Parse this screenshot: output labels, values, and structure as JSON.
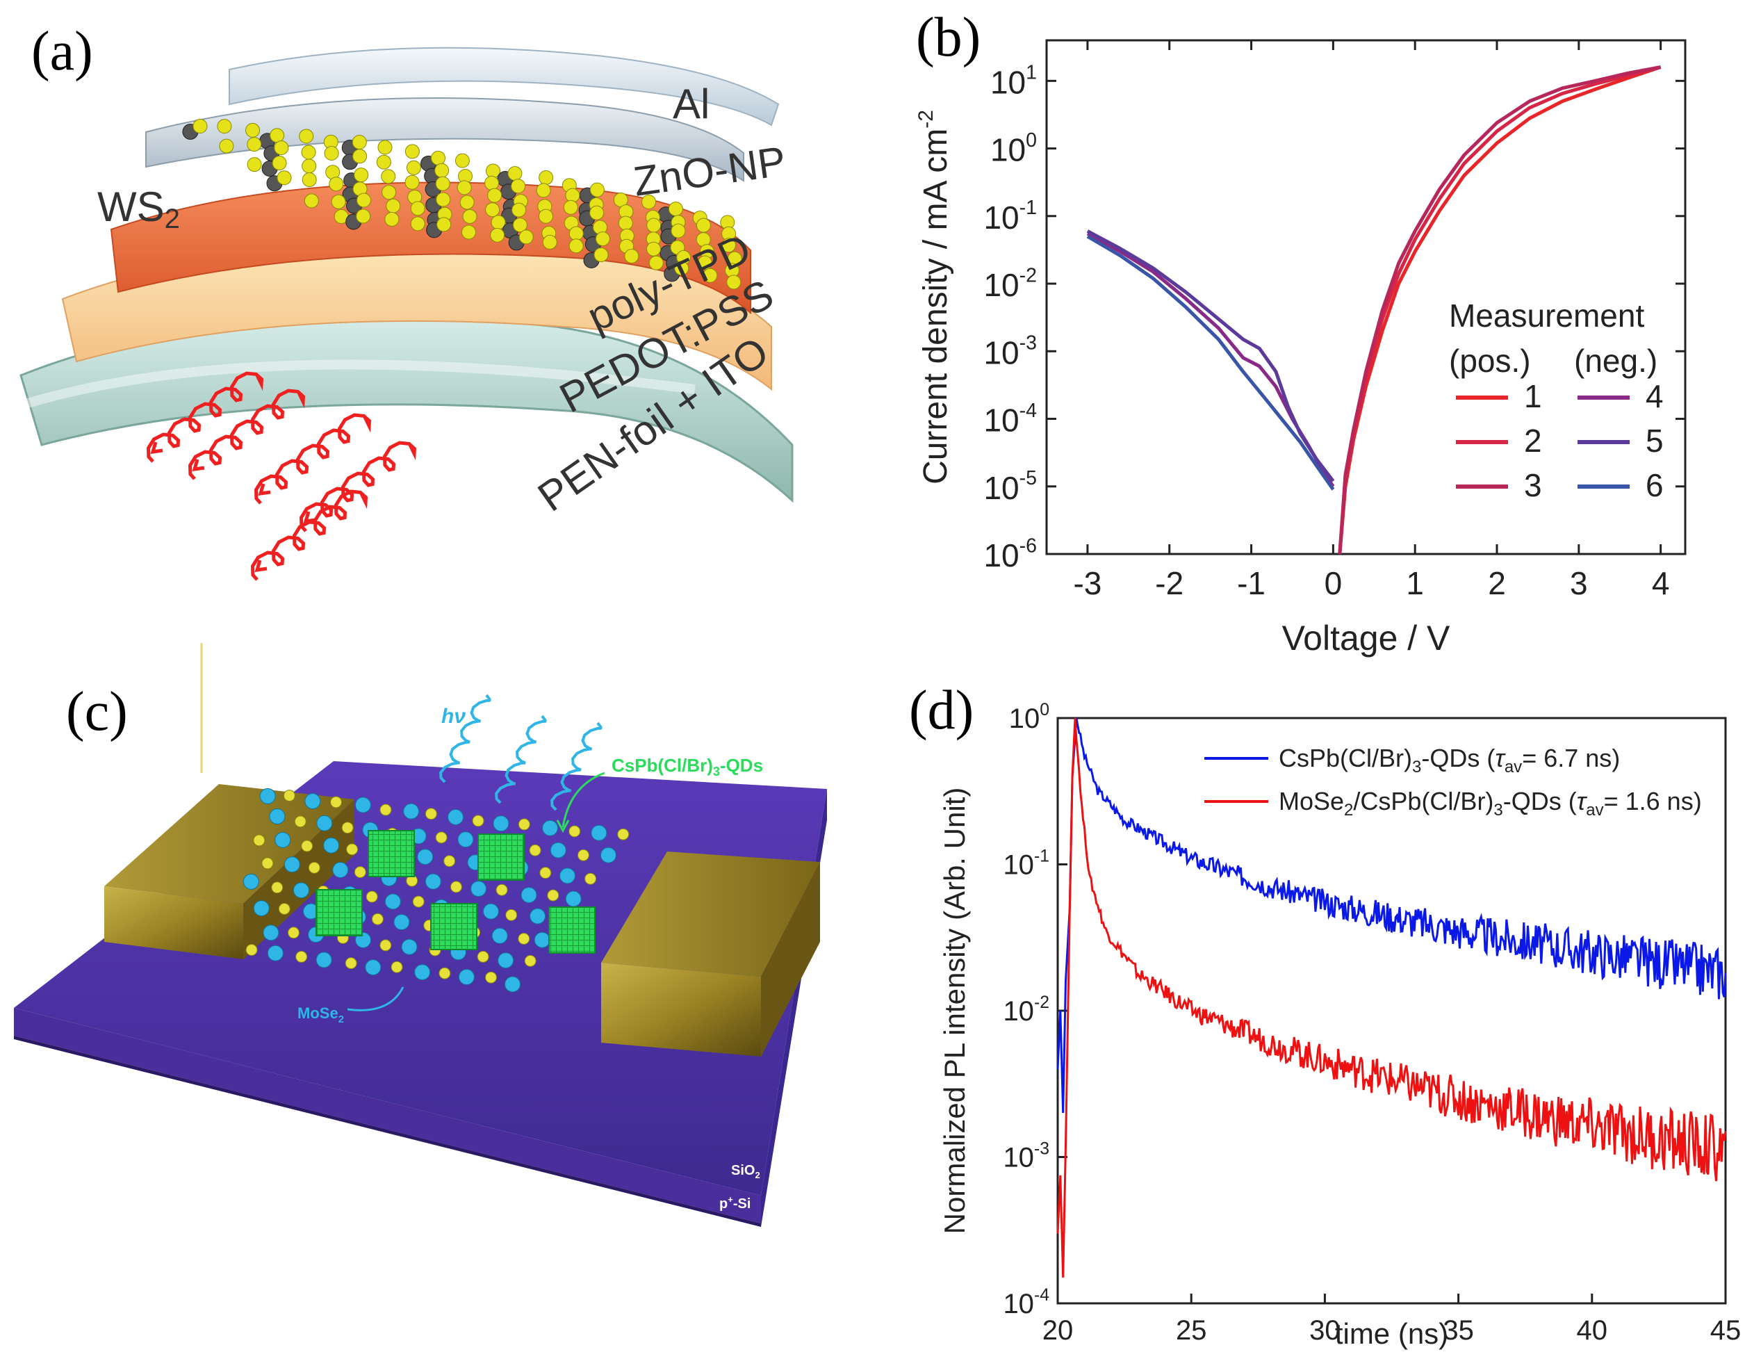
{
  "panels": {
    "a": {
      "label": "(a)",
      "layers": [
        "Al",
        "ZnO-NP",
        "poly-TPD",
        "PEDOT:PSS",
        "PEN-foil + ITO"
      ],
      "material_label": "WS",
      "material_sub": "2"
    },
    "b": {
      "label": "(b)"
    },
    "c": {
      "label": "(c)",
      "hv": "hν",
      "qd_label": "CsPb(Cl/Br)",
      "qd_sub": "3",
      "qd_suffix": "-QDs",
      "mose2_label": "MoSe",
      "mose2_sub": "2",
      "sio2_label": "SiO",
      "sio2_sub": "2",
      "si_label": "p",
      "si_sup": "+",
      "si_suffix": "-Si"
    },
    "d": {
      "label": "(d)"
    }
  },
  "colors": {
    "red": "#e8262a",
    "red2": "#d62545",
    "red3": "#b8275a",
    "purple4": "#8a2a88",
    "purple5": "#5b3a9c",
    "blue6": "#3a55a8",
    "blue_d": "#0a18e8",
    "red_d": "#ee1111"
  },
  "chart_data": [
    {
      "type": "line",
      "title": "",
      "xlabel": "Voltage / V",
      "ylabel": "Current density / mA cm",
      "ylabel_sup": "-2",
      "yscale": "log",
      "xlim": [
        -3.5,
        4.3
      ],
      "ylim_exp": [
        -6,
        1.6
      ],
      "x_ticks": [
        "-3",
        "-2",
        "-1",
        "0",
        "1",
        "2",
        "3",
        "4"
      ],
      "y_tick_exponents": [
        "1",
        "0",
        "-1",
        "-2",
        "-3",
        "-4",
        "-5",
        "-6"
      ],
      "legend": {
        "title": "Measurement",
        "col_pos": "(pos.)",
        "col_neg": "(neg.)",
        "placement": "right"
      },
      "series": [
        {
          "name": "1",
          "group": "pos",
          "color": "#e8262a",
          "x": [
            0.08,
            0.15,
            0.25,
            0.4,
            0.6,
            0.8,
            1.0,
            1.3,
            1.6,
            2.0,
            2.4,
            2.8,
            3.2,
            3.6,
            4.0
          ],
          "y": [
            1e-06,
            1e-05,
            5e-05,
            0.0003,
            0.002,
            0.01,
            0.03,
            0.12,
            0.4,
            1.2,
            2.8,
            5.0,
            7.5,
            11,
            16
          ]
        },
        {
          "name": "2",
          "group": "pos",
          "color": "#d62545",
          "x": [
            0.08,
            0.15,
            0.25,
            0.4,
            0.6,
            0.8,
            1.0,
            1.3,
            1.6,
            2.0,
            2.4,
            2.8,
            3.2,
            3.6,
            4.0
          ],
          "y": [
            1e-06,
            1.2e-05,
            6e-05,
            0.0004,
            0.003,
            0.014,
            0.045,
            0.18,
            0.6,
            1.8,
            4.0,
            6.5,
            9.0,
            12,
            16
          ]
        },
        {
          "name": "3",
          "group": "pos",
          "color": "#b8275a",
          "x": [
            0.08,
            0.15,
            0.25,
            0.4,
            0.6,
            0.8,
            1.0,
            1.3,
            1.6,
            2.0,
            2.4,
            2.8,
            3.2,
            3.6,
            4.0
          ],
          "y": [
            1e-06,
            1.5e-05,
            7e-05,
            0.0005,
            0.004,
            0.02,
            0.06,
            0.25,
            0.8,
            2.4,
            5.0,
            7.8,
            10,
            13,
            16
          ]
        },
        {
          "name": "4",
          "group": "neg",
          "color": "#8a2a88",
          "x": [
            -3.0,
            -2.6,
            -2.2,
            -1.8,
            -1.4,
            -1.1,
            -0.9,
            -0.7,
            -0.5,
            -0.3,
            -0.1,
            0.0
          ],
          "y": [
            0.055,
            0.03,
            0.015,
            0.006,
            0.0022,
            0.0008,
            0.0006,
            0.0003,
            0.0001,
            4e-05,
            1.5e-05,
            1e-05
          ]
        },
        {
          "name": "5",
          "group": "neg",
          "color": "#5b3a9c",
          "x": [
            -3.0,
            -2.6,
            -2.2,
            -1.8,
            -1.4,
            -1.1,
            -0.9,
            -0.7,
            -0.55,
            -0.4,
            -0.2,
            0.0
          ],
          "y": [
            0.06,
            0.033,
            0.017,
            0.0075,
            0.003,
            0.0015,
            0.0011,
            0.0005,
            0.00015,
            6e-05,
            2.5e-05,
            1.2e-05
          ]
        },
        {
          "name": "6",
          "group": "neg",
          "color": "#3a55a8",
          "x": [
            -3.0,
            -2.6,
            -2.2,
            -1.8,
            -1.4,
            -1.1,
            -0.8,
            -0.6,
            -0.4,
            -0.2,
            0.0
          ],
          "y": [
            0.05,
            0.026,
            0.012,
            0.0045,
            0.0015,
            0.0005,
            0.00018,
            9e-05,
            4.5e-05,
            2e-05,
            9e-06
          ]
        }
      ]
    },
    {
      "type": "line",
      "title": "",
      "xlabel": "time (ns)",
      "ylabel": "Normalized PL intensity (Arb. Unit)",
      "yscale": "log",
      "xlim": [
        20,
        45
      ],
      "ylim_exp": [
        -4,
        0
      ],
      "x_ticks": [
        "20",
        "25",
        "30",
        "35",
        "40",
        "45"
      ],
      "y_tick_exponents": [
        "0",
        "-1",
        "-2",
        "-3",
        "-4"
      ],
      "legend": {
        "placement": "top-right"
      },
      "series": [
        {
          "name": "CsPb(Cl/Br)",
          "name_sub": "3",
          "name_suffix": "-QDs (",
          "tau_sym": "τ",
          "tau_sub": "av",
          "tau_value": "= 6.7 ns)",
          "color": "#0a18e8",
          "peak_x": 20.7,
          "floor_y": 0.002,
          "tail": [
            [
              20.7,
              1.0
            ],
            [
              21.0,
              0.55
            ],
            [
              21.5,
              0.32
            ],
            [
              22.5,
              0.2
            ],
            [
              25,
              0.11
            ],
            [
              28,
              0.07
            ],
            [
              30,
              0.055
            ],
            [
              35,
              0.035
            ],
            [
              40,
              0.025
            ],
            [
              45,
              0.018
            ]
          ]
        },
        {
          "name": "MoSe",
          "name_sub": "2",
          "name_suffix": "/CsPb(Cl/Br)",
          "name_sub2": "3",
          "name_suffix2": "-QDs (",
          "tau_sym": "τ",
          "tau_sub": "av",
          "tau_value": "= 1.6 ns)",
          "color": "#ee1111",
          "peak_x": 20.65,
          "floor_y": 0.00015,
          "tail": [
            [
              20.65,
              1.0
            ],
            [
              20.9,
              0.25
            ],
            [
              21.2,
              0.08
            ],
            [
              21.8,
              0.035
            ],
            [
              23,
              0.018
            ],
            [
              25,
              0.01
            ],
            [
              28,
              0.006
            ],
            [
              30,
              0.0045
            ],
            [
              35,
              0.0025
            ],
            [
              40,
              0.0016
            ],
            [
              45,
              0.0011
            ]
          ]
        }
      ]
    }
  ]
}
